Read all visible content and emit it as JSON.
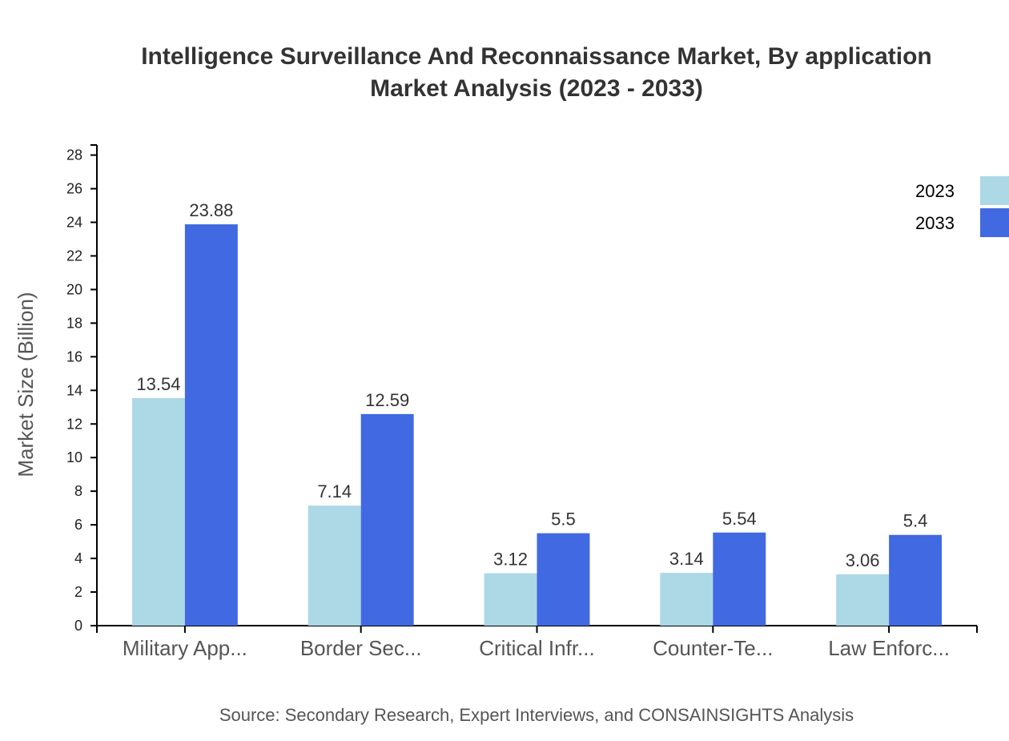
{
  "chart_data": {
    "type": "bar",
    "title": "Intelligence Surveillance And Reconnaissance Market, By application",
    "subtitle": "Market Analysis (2023 - 2033)",
    "xlabel": "",
    "ylabel": "Market Size (Billion)",
    "ylim": [
      0,
      28.6
    ],
    "yticks": [
      0,
      2,
      4,
      6,
      8,
      10,
      12,
      14,
      16,
      18,
      20,
      22,
      24,
      26,
      28
    ],
    "categories": [
      "Military App...",
      "Border Sec...",
      "Critical Infr...",
      "Counter-Te...",
      "Law Enforc..."
    ],
    "series": [
      {
        "name": "2023",
        "color": "#add8e6",
        "values": [
          13.54,
          7.14,
          3.12,
          3.14,
          3.06
        ]
      },
      {
        "name": "2033",
        "color": "#4169e1",
        "values": [
          23.88,
          12.59,
          5.5,
          5.54,
          5.4
        ]
      }
    ],
    "legend": "top-right",
    "grid": false,
    "source": "Source: Secondary Research, Expert Interviews, and CONSAINSIGHTS Analysis"
  }
}
